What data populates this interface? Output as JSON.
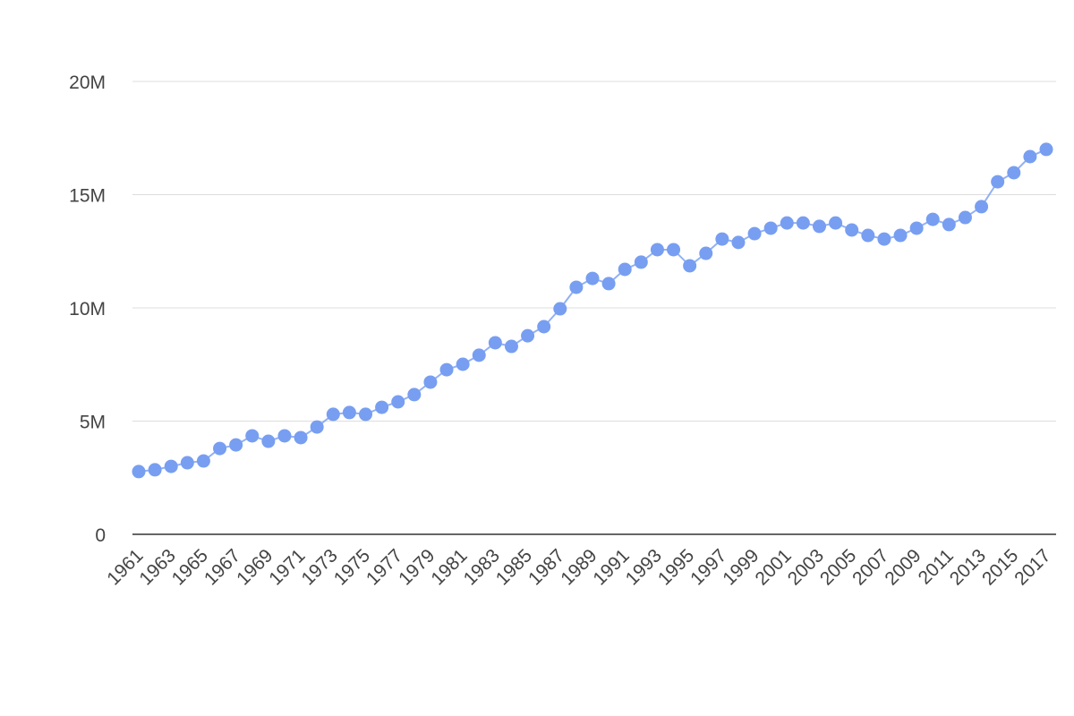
{
  "chart_data": {
    "type": "line",
    "x": [
      1961,
      1962,
      1963,
      1964,
      1965,
      1966,
      1967,
      1968,
      1969,
      1970,
      1971,
      1972,
      1973,
      1974,
      1975,
      1976,
      1977,
      1978,
      1979,
      1980,
      1981,
      1982,
      1983,
      1984,
      1985,
      1986,
      1987,
      1988,
      1989,
      1990,
      1991,
      1992,
      1993,
      1994,
      1995,
      1996,
      1997,
      1998,
      1999,
      2000,
      2001,
      2002,
      2003,
      2004,
      2005,
      2006,
      2007,
      2008,
      2009,
      2010,
      2011,
      2012,
      2013,
      2014,
      2015,
      2016,
      2017
    ],
    "series": [
      {
        "color": "#779ef1",
        "values": [
          2770000,
          2850000,
          3000000,
          3160000,
          3240000,
          3790000,
          3950000,
          4350000,
          4110000,
          4350000,
          4270000,
          4740000,
          5300000,
          5380000,
          5300000,
          5610000,
          5850000,
          6170000,
          6720000,
          7270000,
          7510000,
          7910000,
          8460000,
          8300000,
          8770000,
          9170000,
          9960000,
          10910000,
          11300000,
          11070000,
          11700000,
          12020000,
          12570000,
          12570000,
          11860000,
          12410000,
          13040000,
          12890000,
          13280000,
          13520000,
          13750000,
          13750000,
          13600000,
          13750000,
          13440000,
          13200000,
          13040000,
          13200000,
          13520000,
          13910000,
          13680000,
          13990000,
          14470000,
          15570000,
          15970000,
          16680000,
          17000000
        ]
      }
    ],
    "xlim": [
      1961,
      2017
    ],
    "xticks": [
      1961,
      1963,
      1965,
      1967,
      1969,
      1971,
      1973,
      1975,
      1977,
      1979,
      1981,
      1983,
      1985,
      1987,
      1989,
      1991,
      1993,
      1995,
      1997,
      1999,
      2001,
      2003,
      2005,
      2007,
      2009,
      2011,
      2013,
      2015,
      2017
    ],
    "ylim": [
      0,
      20000000
    ],
    "yticks": [
      0,
      {
        "value": 5000000,
        "label": "5M"
      },
      {
        "value": 10000000,
        "label": "10M"
      },
      {
        "value": 15000000,
        "label": "15M"
      },
      {
        "value": 20000000,
        "label": "20M"
      }
    ],
    "grid": true
  }
}
